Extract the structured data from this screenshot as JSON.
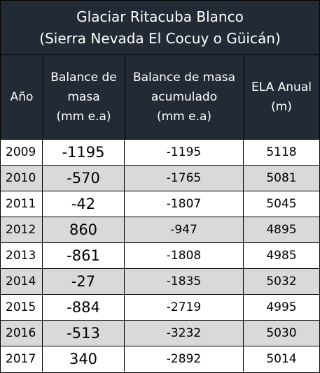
{
  "title": {
    "line1": "Glaciar Ritacuba Blanco",
    "line2": "(Sierra Nevada El Cocuy o Güicán)"
  },
  "columns": [
    "Año",
    "Balance de\nmasa\n(mm e.a)",
    "Balance de masa\nacumulado\n(mm e.a)",
    "ELA Anual\n(m)"
  ],
  "rows": [
    {
      "year": "2009",
      "balance": "-1195",
      "cumulative": "-1195",
      "ela": "5118"
    },
    {
      "year": "2010",
      "balance": "-570",
      "cumulative": "-1765",
      "ela": "5081"
    },
    {
      "year": "2011",
      "balance": "-42",
      "cumulative": "-1807",
      "ela": "5045"
    },
    {
      "year": "2012",
      "balance": "860",
      "cumulative": "-947",
      "ela": "4895"
    },
    {
      "year": "2013",
      "balance": "-861",
      "cumulative": "-1808",
      "ela": "4985"
    },
    {
      "year": "2014",
      "balance": "-27",
      "cumulative": "-1835",
      "ela": "5032"
    },
    {
      "year": "2015",
      "balance": "-884",
      "cumulative": "-2719",
      "ela": "4995"
    },
    {
      "year": "2016",
      "balance": "-513",
      "cumulative": "-3232",
      "ela": "5030"
    },
    {
      "year": "2017",
      "balance": "340",
      "cumulative": "-2892",
      "ela": "5014"
    }
  ],
  "colors": {
    "header_bg": "#222b35",
    "header_text": "#ffffff",
    "row_alt_bg": "#d9d9d9",
    "border": "#000000"
  }
}
